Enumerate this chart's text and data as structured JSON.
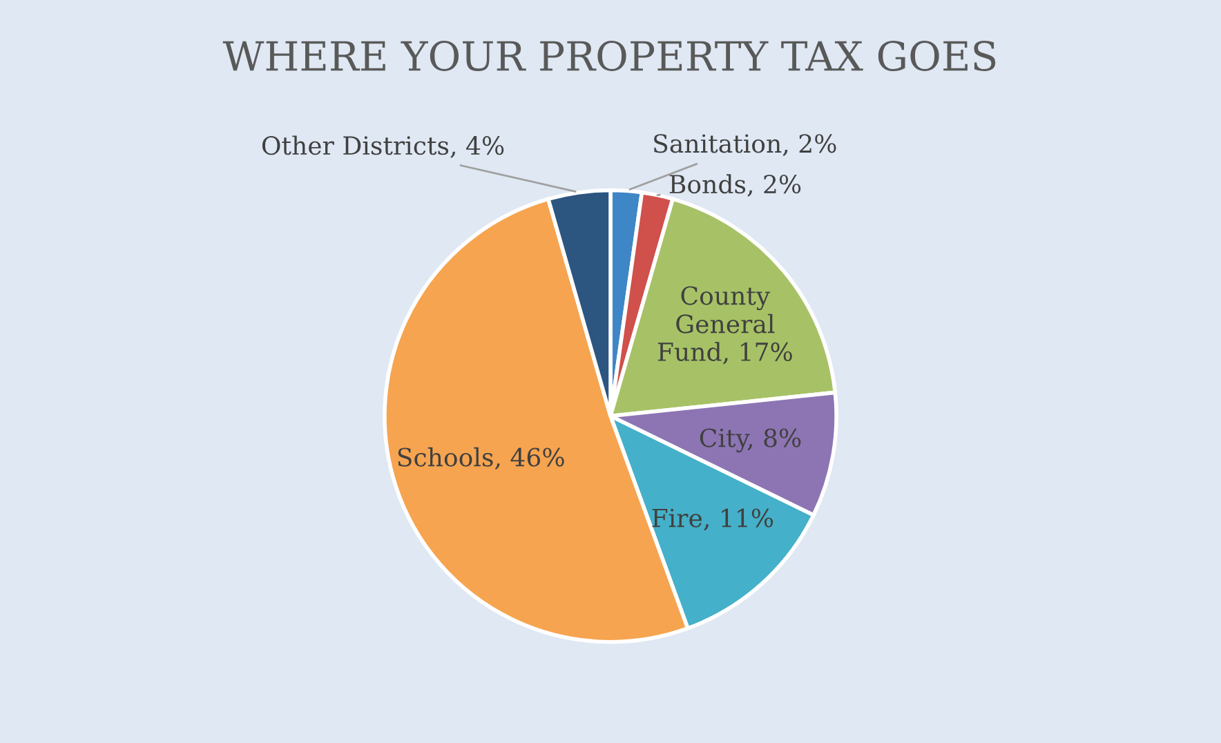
{
  "chart_data": {
    "type": "pie",
    "title": "WHERE YOUR PROPERTY TAX GOES",
    "categories": [
      "Sanitation",
      "Bonds",
      "County General Fund",
      "City",
      "Fire",
      "Schools",
      "Other Districts"
    ],
    "values": [
      2,
      2,
      17,
      8,
      11,
      46,
      4
    ],
    "value_labels": [
      "2%",
      "2%",
      "17%",
      "8%",
      "11%",
      "46%",
      "4%"
    ],
    "colors": [
      "#3f86c6",
      "#d0504c",
      "#a7c266",
      "#8d75b4",
      "#45b0c9",
      "#f6a450",
      "#2c5680"
    ]
  }
}
